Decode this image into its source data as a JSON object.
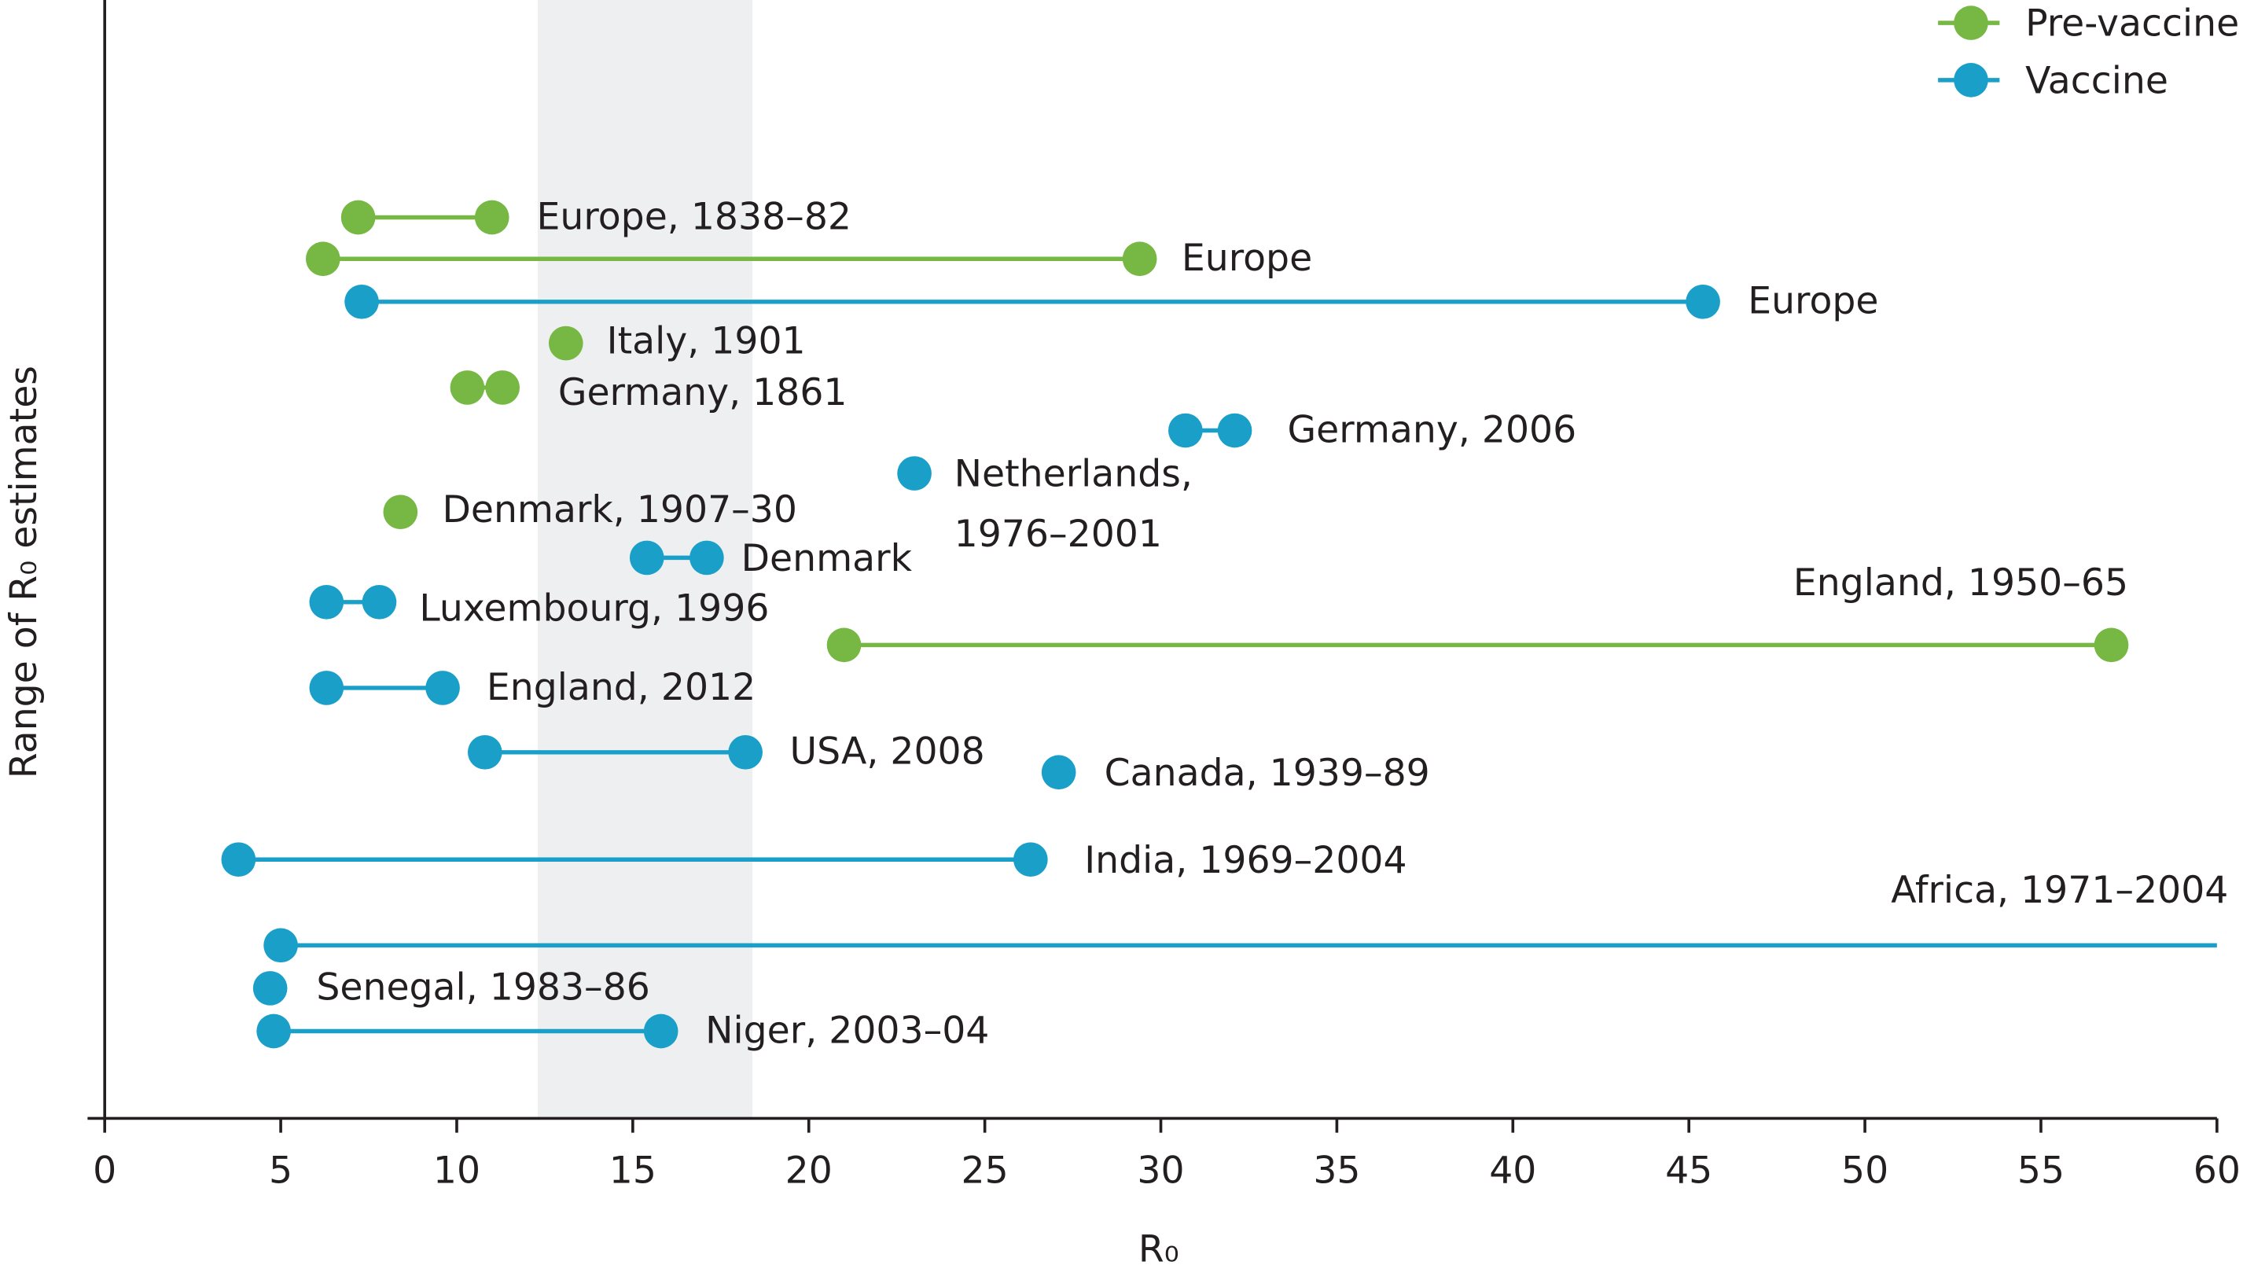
{
  "chart_data": {
    "type": "dumbbell",
    "xlabel": "R₀",
    "ylabel": "Range of R₀ estimates",
    "xlim": [
      0,
      60
    ],
    "xticks": [
      0,
      5,
      10,
      15,
      20,
      25,
      30,
      35,
      40,
      45,
      50,
      55,
      60
    ],
    "shaded_range": [
      12.3,
      18.4
    ],
    "shade_color": "#eeeff1",
    "legend": "upper right",
    "series": [
      {
        "name": "Pre-vaccine",
        "color": "#76b843"
      },
      {
        "name": "Vaccine",
        "color": "#1aa0c8"
      }
    ],
    "rows": [
      {
        "label": "Europe, 1838–82",
        "series": 0,
        "low": 7.2,
        "high": 11.0
      },
      {
        "label": "Europe",
        "series": 0,
        "low": 6.2,
        "high": 29.4
      },
      {
        "label": "Europe",
        "series": 1,
        "low": 7.3,
        "high": 45.4
      },
      {
        "label": "Italy, 1901",
        "series": 0,
        "low": 13.1,
        "high": null
      },
      {
        "label": "Germany, 1861",
        "series": 0,
        "low": 10.3,
        "high": 11.3
      },
      {
        "label": "Germany, 2006",
        "series": 1,
        "low": 30.7,
        "high": 32.1
      },
      {
        "label": [
          "Netherlands,",
          "1976–2001"
        ],
        "series": 1,
        "low": 23.0,
        "high": null
      },
      {
        "label": "Denmark, 1907–30",
        "series": 0,
        "low": 8.4,
        "high": null
      },
      {
        "label": "Denmark",
        "series": 1,
        "low": 15.4,
        "high": 17.1
      },
      {
        "label": "Luxembourg, 1996",
        "series": 1,
        "low": 6.3,
        "high": 7.8
      },
      {
        "label": "England, 1950–65",
        "series": 0,
        "low": 21.0,
        "high": 57.0
      },
      {
        "label": "England, 2012",
        "series": 1,
        "low": 6.3,
        "high": 9.6
      },
      {
        "label": "USA, 2008",
        "series": 1,
        "low": 10.8,
        "high": 18.2
      },
      {
        "label": "Canada, 1939–89",
        "series": 1,
        "low": 27.1,
        "high": null
      },
      {
        "label": "India, 1969–2004",
        "series": 1,
        "low": 3.8,
        "high": 26.3
      },
      {
        "label": "Africa, 1971–2004",
        "series": 1,
        "low": 5.0,
        "high": 60,
        "end_marker": false
      },
      {
        "label": "Senegal, 1983–86",
        "series": 1,
        "low": 4.7,
        "high": null
      },
      {
        "label": "Niger, 2003–04",
        "series": 1,
        "low": 4.8,
        "high": 15.8
      }
    ]
  }
}
